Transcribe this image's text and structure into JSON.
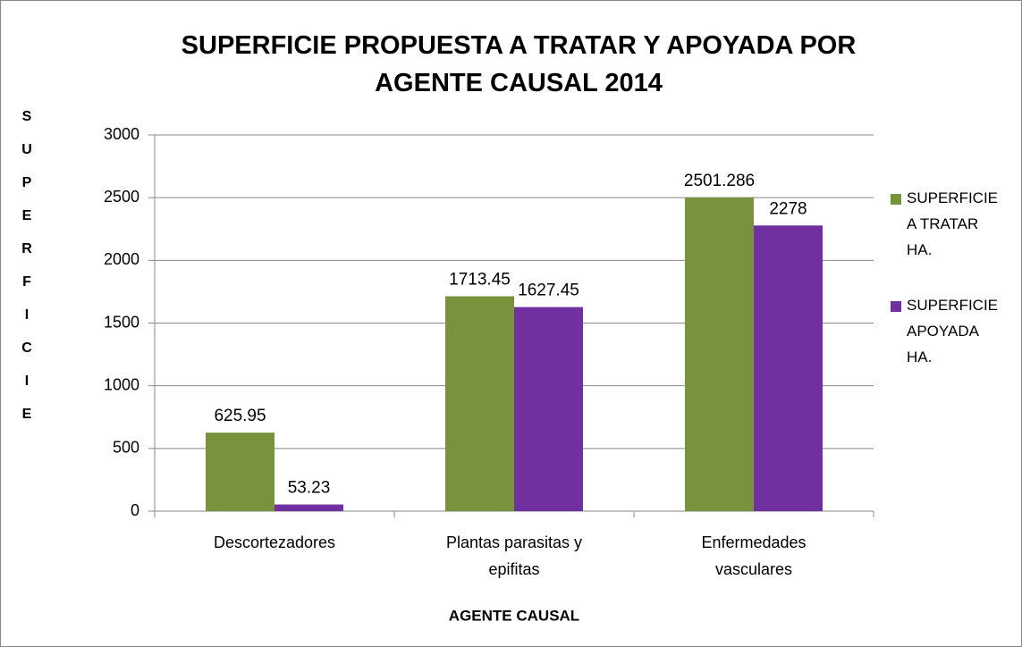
{
  "chart_data": {
    "type": "bar",
    "title": "SUPERFICIE PROPUESTA A TRATAR Y APOYADA POR AGENTE CAUSAL 2014",
    "y_label": "SUPERFICIE",
    "x_label": "AGENTE CAUSAL",
    "categories": [
      "Descortezadores",
      "Plantas parasitas y epifitas",
      "Enfermedades vasculares"
    ],
    "series": [
      {
        "name": "SUPERFICIE A TRATAR HA.",
        "color": "#77933c",
        "values": [
          625.95,
          1713.45,
          2501.286
        ]
      },
      {
        "name": "SUPERFICIE APOYADA HA.",
        "color": "#7030a0",
        "values": [
          53.23,
          1627.45,
          2278
        ]
      }
    ],
    "ylim": [
      0,
      3000
    ],
    "yticks": [
      0,
      500,
      1000,
      1500,
      2000,
      2500,
      3000
    ],
    "grid": true,
    "legend": "right"
  }
}
